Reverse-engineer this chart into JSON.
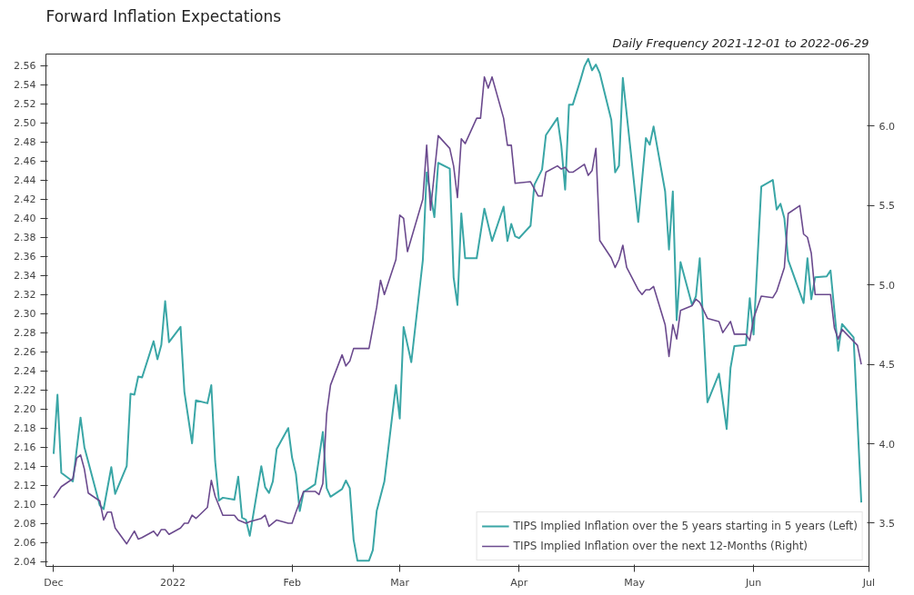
{
  "chart_data": {
    "type": "line",
    "title": "Forward Inflation Expectations",
    "subtitle": "Daily Frequency 2021-12-01 to 2022-06-29",
    "xlim": [
      "2021-11-29",
      "2022-07-01"
    ],
    "xticks": [
      {
        "value": "2021-12-01",
        "label": "Dec"
      },
      {
        "value": "2022-01-01",
        "label": "2022"
      },
      {
        "value": "2022-02-01",
        "label": "Feb"
      },
      {
        "value": "2022-03-01",
        "label": "Mar"
      },
      {
        "value": "2022-04-01",
        "label": "Apr"
      },
      {
        "value": "2022-05-01",
        "label": "May"
      },
      {
        "value": "2022-06-01",
        "label": "Jun"
      },
      {
        "value": "2022-07-01",
        "label": "Jul"
      }
    ],
    "ylim": [
      2.035,
      2.572
    ],
    "yticks": [
      2.04,
      2.06,
      2.08,
      {
        "value": 2.1,
        "label": "2.10"
      },
      2.12,
      2.14,
      2.16,
      2.18,
      {
        "value": 2.2,
        "label": "2.20"
      },
      2.22,
      2.24,
      2.26,
      2.28,
      {
        "value": 2.3,
        "label": "2.30"
      },
      2.32,
      2.34,
      2.36,
      2.38,
      {
        "value": 2.4,
        "label": "2.40"
      },
      2.42,
      2.44,
      2.46,
      2.48,
      {
        "value": 2.5,
        "label": "2.50"
      },
      2.52,
      2.54,
      2.56
    ],
    "y2lim": [
      3.228,
      6.454
    ],
    "y2ticks": [
      3.5,
      {
        "value": 4.0,
        "label": "4.0"
      },
      4.5,
      {
        "value": 5.0,
        "label": "5.0"
      },
      5.5,
      {
        "value": 6.0,
        "label": "6.0"
      }
    ],
    "grid": false,
    "legend": "bottom right",
    "series": [
      {
        "name": "TIPS Implied Inflation over the 5 years starting in 5 years (Left)",
        "color": "#3aa6a6",
        "x": [
          "2021-12-01",
          "2021-12-02",
          "2021-12-03",
          "2021-12-06",
          "2021-12-08",
          "2021-12-09",
          "2021-12-13",
          "2021-12-14",
          "2021-12-16",
          "2021-12-17",
          "2021-12-20",
          "2021-12-21",
          "2021-12-22",
          "2021-12-23",
          "2021-12-24",
          "2021-12-27",
          "2021-12-28",
          "2021-12-29",
          "2021-12-30",
          "2021-12-31",
          "2022-01-03",
          "2022-01-04",
          "2022-01-06",
          "2022-01-07",
          "2022-01-10",
          "2022-01-11",
          "2022-01-12",
          "2022-01-13",
          "2022-01-14",
          "2022-01-17",
          "2022-01-18",
          "2022-01-19",
          "2022-01-20",
          "2022-01-21",
          "2022-01-24",
          "2022-01-25",
          "2022-01-26",
          "2022-01-27",
          "2022-01-28",
          "2022-01-31",
          "2022-02-01",
          "2022-02-02",
          "2022-02-03",
          "2022-02-04",
          "2022-02-07",
          "2022-02-09",
          "2022-02-10",
          "2022-02-11",
          "2022-02-14",
          "2022-02-15",
          "2022-02-16",
          "2022-02-17",
          "2022-02-18",
          "2022-02-21",
          "2022-02-22",
          "2022-02-23",
          "2022-02-25",
          "2022-02-28",
          "2022-03-01",
          "2022-03-02",
          "2022-03-04",
          "2022-03-07",
          "2022-03-08",
          "2022-03-10",
          "2022-03-11",
          "2022-03-14",
          "2022-03-15",
          "2022-03-16",
          "2022-03-17",
          "2022-03-18",
          "2022-03-21",
          "2022-03-23",
          "2022-03-25",
          "2022-03-28",
          "2022-03-29",
          "2022-03-30",
          "2022-03-31",
          "2022-04-01",
          "2022-04-04",
          "2022-04-05",
          "2022-04-07",
          "2022-04-08",
          "2022-04-11",
          "2022-04-12",
          "2022-04-13",
          "2022-04-14",
          "2022-04-15",
          "2022-04-17",
          "2022-04-18",
          "2022-04-19",
          "2022-04-20",
          "2022-04-21",
          "2022-04-22",
          "2022-04-25",
          "2022-04-26",
          "2022-04-27",
          "2022-04-28",
          "2022-05-02",
          "2022-05-04",
          "2022-05-05",
          "2022-05-06",
          "2022-05-09",
          "2022-05-10",
          "2022-05-11",
          "2022-05-12",
          "2022-05-13",
          "2022-05-16",
          "2022-05-17",
          "2022-05-18",
          "2022-05-20",
          "2022-05-23",
          "2022-05-25",
          "2022-05-26",
          "2022-05-27",
          "2022-05-30",
          "2022-05-31",
          "2022-06-01",
          "2022-06-03",
          "2022-06-06",
          "2022-06-07",
          "2022-06-08",
          "2022-06-09",
          "2022-06-10",
          "2022-06-14",
          "2022-06-15",
          "2022-06-16",
          "2022-06-17",
          "2022-06-20",
          "2022-06-21",
          "2022-06-23",
          "2022-06-24",
          "2022-06-27",
          "2022-06-29"
        ],
        "values": [
          2.153,
          2.215,
          2.133,
          2.124,
          2.191,
          2.16,
          2.099,
          2.095,
          2.139,
          2.111,
          2.14,
          2.216,
          2.215,
          2.234,
          2.233,
          2.271,
          2.252,
          2.267,
          2.313,
          2.27,
          2.286,
          2.218,
          2.164,
          2.209,
          2.206,
          2.225,
          2.145,
          2.104,
          2.107,
          2.105,
          2.129,
          2.086,
          2.084,
          2.067,
          2.14,
          2.118,
          2.112,
          2.124,
          2.158,
          2.18,
          2.149,
          2.132,
          2.093,
          2.113,
          2.121,
          2.176,
          2.117,
          2.108,
          2.116,
          2.125,
          2.117,
          2.063,
          2.041,
          2.041,
          2.052,
          2.093,
          2.124,
          2.225,
          2.19,
          2.286,
          2.249,
          2.356,
          2.448,
          2.401,
          2.458,
          2.452,
          2.338,
          2.309,
          2.405,
          2.358,
          2.358,
          2.41,
          2.376,
          2.412,
          2.376,
          2.394,
          2.381,
          2.379,
          2.392,
          2.435,
          2.451,
          2.487,
          2.505,
          2.476,
          2.43,
          2.519,
          2.519,
          2.545,
          2.559,
          2.567,
          2.555,
          2.561,
          2.552,
          2.503,
          2.448,
          2.455,
          2.547,
          2.396,
          2.484,
          2.477,
          2.496,
          2.428,
          2.367,
          2.428,
          2.293,
          2.354,
          2.309,
          2.318,
          2.358,
          2.207,
          2.237,
          2.179,
          2.243,
          2.266,
          2.267,
          2.316,
          2.278,
          2.433,
          2.44,
          2.409,
          2.415,
          2.4,
          2.356,
          2.311,
          2.358,
          2.315,
          2.338,
          2.339,
          2.345,
          2.261,
          2.289,
          2.275,
          2.102
        ]
      },
      {
        "name": "TIPS Implied Inflation over the next 12-Months (Right)",
        "color": "#6b4a8e",
        "axis": "y2",
        "x": [
          "2021-12-01",
          "2021-12-03",
          "2021-12-06",
          "2021-12-07",
          "2021-12-08",
          "2021-12-09",
          "2021-12-10",
          "2021-12-13",
          "2021-12-14",
          "2021-12-15",
          "2021-12-16",
          "2021-12-17",
          "2021-12-20",
          "2021-12-21",
          "2021-12-22",
          "2021-12-23",
          "2021-12-24",
          "2021-12-27",
          "2021-12-28",
          "2021-12-29",
          "2021-12-30",
          "2021-12-31",
          "2022-01-03",
          "2022-01-04",
          "2022-01-05",
          "2022-01-06",
          "2022-01-07",
          "2022-01-10",
          "2022-01-11",
          "2022-01-12",
          "2022-01-14",
          "2022-01-17",
          "2022-01-18",
          "2022-01-20",
          "2022-01-21",
          "2022-01-24",
          "2022-01-25",
          "2022-01-26",
          "2022-01-28",
          "2022-01-31",
          "2022-02-01",
          "2022-02-02",
          "2022-02-04",
          "2022-02-07",
          "2022-02-08",
          "2022-02-09",
          "2022-02-10",
          "2022-02-11",
          "2022-02-14",
          "2022-02-15",
          "2022-02-16",
          "2022-02-17",
          "2022-02-21",
          "2022-02-23",
          "2022-02-24",
          "2022-02-25",
          "2022-02-28",
          "2022-03-01",
          "2022-03-02",
          "2022-03-03",
          "2022-03-07",
          "2022-03-08",
          "2022-03-09",
          "2022-03-11",
          "2022-03-14",
          "2022-03-15",
          "2022-03-16",
          "2022-03-17",
          "2022-03-18",
          "2022-03-21",
          "2022-03-22",
          "2022-03-23",
          "2022-03-24",
          "2022-03-25",
          "2022-03-28",
          "2022-03-29",
          "2022-03-30",
          "2022-03-31",
          "2022-04-04",
          "2022-04-06",
          "2022-04-07",
          "2022-04-08",
          "2022-04-11",
          "2022-04-12",
          "2022-04-13",
          "2022-04-14",
          "2022-04-15",
          "2022-04-18",
          "2022-04-19",
          "2022-04-20",
          "2022-04-21",
          "2022-04-22",
          "2022-04-25",
          "2022-04-26",
          "2022-04-27",
          "2022-04-28",
          "2022-04-29",
          "2022-05-02",
          "2022-05-03",
          "2022-05-04",
          "2022-05-05",
          "2022-05-06",
          "2022-05-09",
          "2022-05-10",
          "2022-05-11",
          "2022-05-12",
          "2022-05-13",
          "2022-05-16",
          "2022-05-17",
          "2022-05-18",
          "2022-05-20",
          "2022-05-23",
          "2022-05-24",
          "2022-05-26",
          "2022-05-27",
          "2022-05-30",
          "2022-05-31",
          "2022-06-01",
          "2022-06-03",
          "2022-06-06",
          "2022-06-07",
          "2022-06-09",
          "2022-06-10",
          "2022-06-13",
          "2022-06-14",
          "2022-06-15",
          "2022-06-16",
          "2022-06-17",
          "2022-06-21",
          "2022-06-22",
          "2022-06-23",
          "2022-06-24",
          "2022-06-28",
          "2022-06-29"
        ],
        "values": [
          3.66,
          3.73,
          3.78,
          3.91,
          3.93,
          3.84,
          3.69,
          3.64,
          3.52,
          3.57,
          3.57,
          3.47,
          3.37,
          3.41,
          3.45,
          3.4,
          3.41,
          3.45,
          3.42,
          3.46,
          3.46,
          3.43,
          3.47,
          3.5,
          3.5,
          3.55,
          3.53,
          3.6,
          3.77,
          3.67,
          3.55,
          3.55,
          3.52,
          3.5,
          3.51,
          3.53,
          3.55,
          3.48,
          3.52,
          3.5,
          3.5,
          3.57,
          3.7,
          3.7,
          3.68,
          3.75,
          4.19,
          4.37,
          4.56,
          4.49,
          4.52,
          4.6,
          4.6,
          4.86,
          5.03,
          4.94,
          5.16,
          5.44,
          5.42,
          5.21,
          5.54,
          5.88,
          5.47,
          5.94,
          5.86,
          5.75,
          5.55,
          5.92,
          5.89,
          6.05,
          6.05,
          6.31,
          6.24,
          6.31,
          6.05,
          5.88,
          5.88,
          5.64,
          5.65,
          5.56,
          5.56,
          5.71,
          5.75,
          5.73,
          5.74,
          5.71,
          5.71,
          5.76,
          5.69,
          5.72,
          5.86,
          5.28,
          5.17,
          5.11,
          5.16,
          5.25,
          5.11,
          4.97,
          4.94,
          4.97,
          4.97,
          4.99,
          4.75,
          4.55,
          4.75,
          4.66,
          4.84,
          4.87,
          4.91,
          4.89,
          4.79,
          4.77,
          4.7,
          4.77,
          4.69,
          4.69,
          4.65,
          4.79,
          4.93,
          4.92,
          4.96,
          5.11,
          5.45,
          5.5,
          5.32,
          5.3,
          5.2,
          4.94,
          4.94,
          4.73,
          4.66,
          4.72,
          4.62,
          4.5
        ]
      }
    ]
  }
}
